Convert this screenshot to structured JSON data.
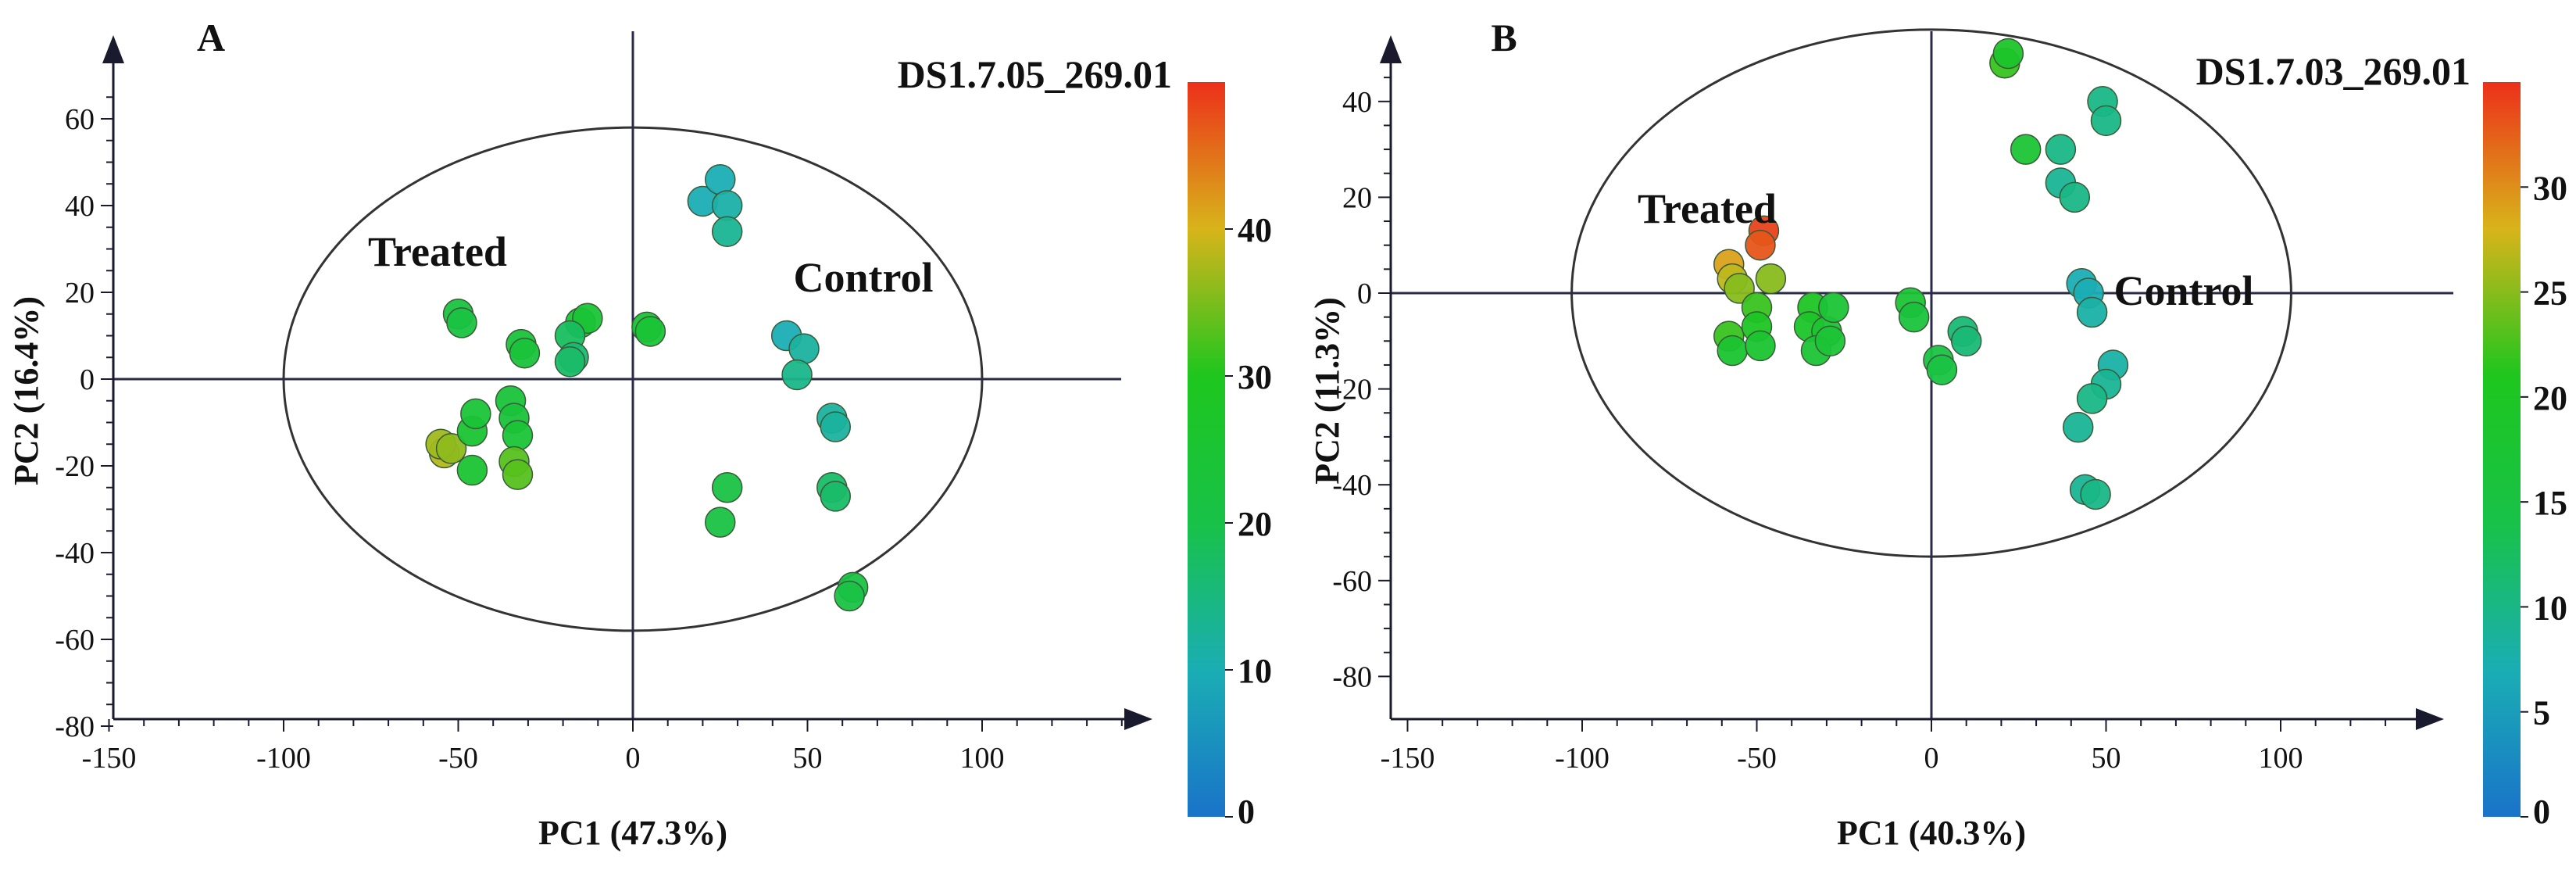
{
  "figure": {
    "panels": [
      {
        "letter": "A",
        "title": "DS1.7.05_269.01",
        "xlabel": "PC1 (47.3%)",
        "ylabel": "PC2 (16.4%)",
        "group_left": "Treated",
        "group_right": "Control"
      },
      {
        "letter": "B",
        "title": "DS1.7.03_269.01",
        "xlabel": "PC1 (40.3%)",
        "ylabel": "PC2 (11.3%)",
        "group_left": "Treated",
        "group_right": "Control"
      }
    ]
  },
  "chart_data": [
    {
      "type": "scatter",
      "panel": "A",
      "title": "DS1.7.05_269.01",
      "xlabel": "PC1 (47.3%)",
      "ylabel": "PC2 (16.4%)",
      "xlim": [
        -150,
        150
      ],
      "ylim": [
        -80,
        70
      ],
      "xticks": [
        "-150",
        "-100",
        "-50",
        "0",
        "50",
        "100"
      ],
      "yticks": [
        "-80",
        "-60",
        "-40",
        "-20",
        "0",
        "20",
        "40",
        "60"
      ],
      "colorbar": {
        "min": 0,
        "max": 50,
        "ticks": [
          "0",
          "10",
          "20",
          "30",
          "40"
        ]
      },
      "ellipse": {
        "cx": 0,
        "cy": 0,
        "rx": 100,
        "ry": 58
      },
      "annotations": [
        "Treated",
        "Control"
      ],
      "points": [
        {
          "x": -50,
          "y": 15,
          "c": 22
        },
        {
          "x": -49,
          "y": 13,
          "c": 22
        },
        {
          "x": -32,
          "y": 8,
          "c": 23
        },
        {
          "x": -31,
          "y": 6,
          "c": 23
        },
        {
          "x": -15,
          "y": 13,
          "c": 24
        },
        {
          "x": -13,
          "y": 14,
          "c": 24
        },
        {
          "x": -18,
          "y": 10,
          "c": 18
        },
        {
          "x": -17,
          "y": 5,
          "c": 16
        },
        {
          "x": -18,
          "y": 4,
          "c": 17
        },
        {
          "x": 4,
          "y": 12,
          "c": 24
        },
        {
          "x": 5,
          "y": 11,
          "c": 24
        },
        {
          "x": -54,
          "y": -17,
          "c": 38
        },
        {
          "x": -55,
          "y": -15,
          "c": 37
        },
        {
          "x": -52,
          "y": -16,
          "c": 36
        },
        {
          "x": -46,
          "y": -12,
          "c": 25
        },
        {
          "x": -45,
          "y": -8,
          "c": 24
        },
        {
          "x": -46,
          "y": -21,
          "c": 25
        },
        {
          "x": -35,
          "y": -5,
          "c": 23
        },
        {
          "x": -34,
          "y": -9,
          "c": 23
        },
        {
          "x": -33,
          "y": -13,
          "c": 24
        },
        {
          "x": -34,
          "y": -19,
          "c": 33
        },
        {
          "x": -33,
          "y": -22,
          "c": 33
        },
        {
          "x": 20,
          "y": 41,
          "c": 10
        },
        {
          "x": 25,
          "y": 46,
          "c": 10
        },
        {
          "x": 27,
          "y": 40,
          "c": 11
        },
        {
          "x": 27,
          "y": 34,
          "c": 13
        },
        {
          "x": 44,
          "y": 10,
          "c": 10
        },
        {
          "x": 49,
          "y": 7,
          "c": 12
        },
        {
          "x": 47,
          "y": 1,
          "c": 14
        },
        {
          "x": 57,
          "y": -9,
          "c": 12
        },
        {
          "x": 58,
          "y": -11,
          "c": 12
        },
        {
          "x": 57,
          "y": -25,
          "c": 17
        },
        {
          "x": 58,
          "y": -27,
          "c": 17
        },
        {
          "x": 27,
          "y": -25,
          "c": 21
        },
        {
          "x": 25,
          "y": -33,
          "c": 21
        },
        {
          "x": 63,
          "y": -48,
          "c": 21
        },
        {
          "x": 62,
          "y": -50,
          "c": 21
        }
      ]
    },
    {
      "type": "scatter",
      "panel": "B",
      "title": "DS1.7.03_269.01",
      "xlabel": "PC1 (40.3%)",
      "ylabel": "PC2 (11.3%)",
      "xlim": [
        -150,
        150
      ],
      "ylim": [
        -80,
        55
      ],
      "xticks": [
        "-150",
        "-100",
        "-50",
        "0",
        "50",
        "100"
      ],
      "yticks": [
        "-80",
        "-60",
        "-40",
        "-20",
        "0",
        "20",
        "40"
      ],
      "colorbar": {
        "min": 0,
        "max": 35,
        "ticks": [
          "0",
          "5",
          "10",
          "15",
          "20",
          "25",
          "30"
        ]
      },
      "ellipse": {
        "cx": 0,
        "cy": 0,
        "rx": 103,
        "ry": 55
      },
      "annotations": [
        "Treated",
        "Control"
      ],
      "points": [
        {
          "x": 21,
          "y": 48,
          "c": 22
        },
        {
          "x": 22,
          "y": 50,
          "c": 19
        },
        {
          "x": 27,
          "y": 30,
          "c": 17
        },
        {
          "x": 49,
          "y": 40,
          "c": 10
        },
        {
          "x": 50,
          "y": 36,
          "c": 10
        },
        {
          "x": 37,
          "y": 30,
          "c": 10
        },
        {
          "x": 37,
          "y": 23,
          "c": 9
        },
        {
          "x": 41,
          "y": 20,
          "c": 10
        },
        {
          "x": 43,
          "y": 2,
          "c": 7
        },
        {
          "x": 45,
          "y": 0,
          "c": 7
        },
        {
          "x": 46,
          "y": -4,
          "c": 8
        },
        {
          "x": 52,
          "y": -15,
          "c": 8
        },
        {
          "x": 50,
          "y": -19,
          "c": 9
        },
        {
          "x": 46,
          "y": -22,
          "c": 10
        },
        {
          "x": 42,
          "y": -28,
          "c": 9
        },
        {
          "x": 44,
          "y": -41,
          "c": 9
        },
        {
          "x": 47,
          "y": -42,
          "c": 10
        },
        {
          "x": -48,
          "y": 13,
          "c": 34
        },
        {
          "x": -49,
          "y": 10,
          "c": 33
        },
        {
          "x": -58,
          "y": 6,
          "c": 29
        },
        {
          "x": -57,
          "y": 3,
          "c": 27
        },
        {
          "x": -55,
          "y": 1,
          "c": 25
        },
        {
          "x": -46,
          "y": 3,
          "c": 25
        },
        {
          "x": -58,
          "y": -9,
          "c": 22
        },
        {
          "x": -50,
          "y": -3,
          "c": 22
        },
        {
          "x": -50,
          "y": -7,
          "c": 20
        },
        {
          "x": -57,
          "y": -12,
          "c": 18
        },
        {
          "x": -49,
          "y": -11,
          "c": 18
        },
        {
          "x": -34,
          "y": -3,
          "c": 20
        },
        {
          "x": -35,
          "y": -7,
          "c": 19
        },
        {
          "x": -30,
          "y": -8,
          "c": 18
        },
        {
          "x": -28,
          "y": -3,
          "c": 17
        },
        {
          "x": -33,
          "y": -12,
          "c": 17
        },
        {
          "x": -29,
          "y": -10,
          "c": 17
        },
        {
          "x": -6,
          "y": -2,
          "c": 17
        },
        {
          "x": -5,
          "y": -5,
          "c": 16
        },
        {
          "x": 2,
          "y": -14,
          "c": 15
        },
        {
          "x": 3,
          "y": -16,
          "c": 15
        },
        {
          "x": 9,
          "y": -8,
          "c": 11
        },
        {
          "x": 10,
          "y": -10,
          "c": 11
        }
      ]
    }
  ]
}
